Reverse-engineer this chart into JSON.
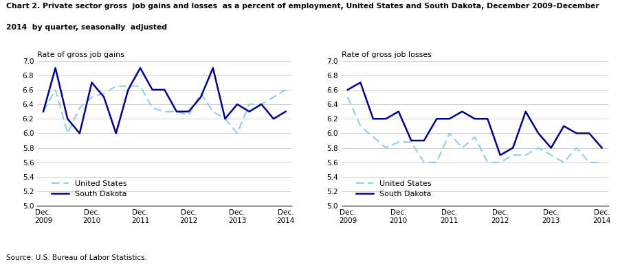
{
  "title_line1": "Chart 2. Private sector gross  job gains and losses  as a percent of employment, United States and South Dakota, December 2009–December",
  "title_line2": "2014  by quarter, seasonally  adjusted",
  "source": "Source: U.S. Bureau of Labor Statistics.",
  "left_ylabel": "Rate of gross job gains",
  "right_ylabel": "Rate of gross job losses",
  "ylim": [
    5.0,
    7.0
  ],
  "yticks": [
    5.0,
    5.2,
    5.4,
    5.6,
    5.8,
    6.0,
    6.2,
    6.4,
    6.6,
    6.8,
    7.0
  ],
  "xtick_positions": [
    0,
    4,
    8,
    12,
    16,
    20
  ],
  "xtick_labels": [
    "Dec.\n2009",
    "Dec.\n2010",
    "Dec.\n2011",
    "Dec.\n2012",
    "Dec.\n2013",
    "Dec.\n2014"
  ],
  "n_quarters": 21,
  "gains_us": [
    6.3,
    6.6,
    6.0,
    6.35,
    6.5,
    6.55,
    6.65,
    6.65,
    6.65,
    6.35,
    6.3,
    6.3,
    6.25,
    6.55,
    6.3,
    6.2,
    6.0,
    6.4,
    6.4,
    6.5,
    6.6
  ],
  "gains_sd": [
    6.3,
    6.9,
    6.2,
    6.0,
    6.7,
    6.5,
    6.0,
    6.6,
    6.9,
    6.6,
    6.6,
    6.3,
    6.3,
    6.5,
    6.9,
    6.2,
    6.4,
    6.3,
    6.4,
    6.2,
    6.3
  ],
  "losses_us": [
    6.5,
    6.1,
    5.95,
    5.8,
    5.88,
    5.88,
    5.6,
    5.6,
    6.0,
    5.8,
    5.95,
    5.6,
    5.6,
    5.7,
    5.7,
    5.8,
    5.7,
    5.6,
    5.8,
    5.6,
    5.6
  ],
  "losses_sd": [
    6.6,
    6.7,
    6.2,
    6.2,
    6.3,
    5.9,
    5.9,
    6.2,
    6.2,
    6.3,
    6.2,
    6.2,
    5.7,
    5.8,
    6.3,
    6.0,
    5.8,
    6.1,
    6.0,
    6.0,
    5.8
  ],
  "color_us": "#87CEEB",
  "color_sd": "#00008B",
  "legend_us": "United States",
  "legend_sd": "South Dakota"
}
